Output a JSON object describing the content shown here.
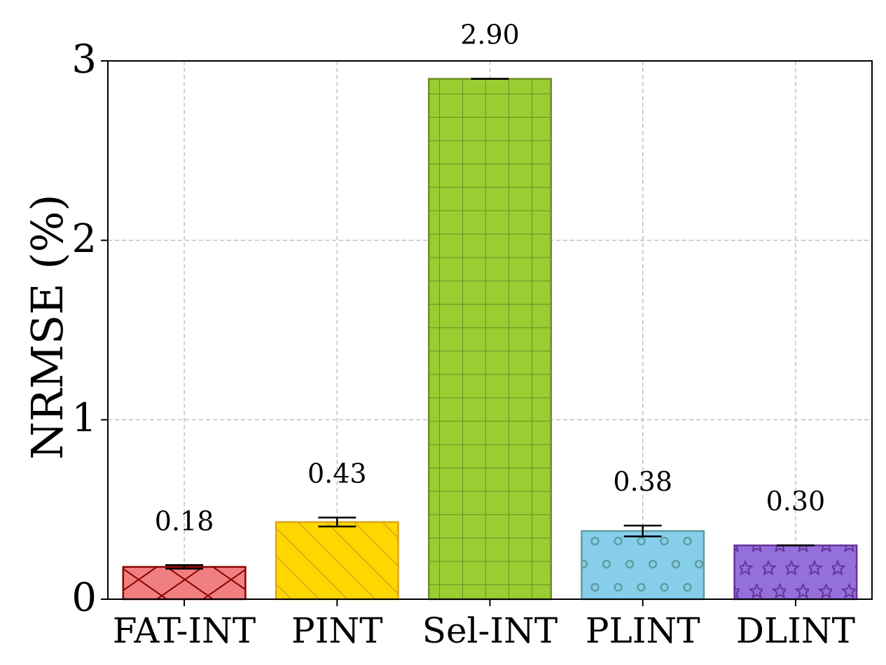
{
  "chart_data": {
    "type": "bar",
    "title": "",
    "xlabel": "",
    "ylabel": "NRMSE (%)",
    "ylim": [
      0,
      3
    ],
    "yticks": [
      "0",
      "1",
      "2",
      "3"
    ],
    "grid": true,
    "categories": [
      "FAT-INT",
      "PINT",
      "Sel-INT",
      "PLINT",
      "DLINT"
    ],
    "values": [
      0.18,
      0.43,
      2.9,
      0.38,
      0.3
    ],
    "errors": [
      0.01,
      0.025,
      0.0,
      0.03,
      0.0
    ],
    "value_labels": [
      "0.18",
      "0.43",
      "2.90",
      "0.38",
      "0.30"
    ],
    "bar_styles": [
      {
        "fill": "#f08080",
        "edge": "#8b0000",
        "pattern": "cross-diagonal"
      },
      {
        "fill": "#ffd700",
        "edge": "#daa520",
        "pattern": "diagonal"
      },
      {
        "fill": "#9acd32",
        "edge": "#6b8e23",
        "pattern": "grid"
      },
      {
        "fill": "#87ceeb",
        "edge": "#5f9ea0",
        "pattern": "circles"
      },
      {
        "fill": "#9370db",
        "edge": "#663399",
        "pattern": "stars"
      }
    ]
  }
}
